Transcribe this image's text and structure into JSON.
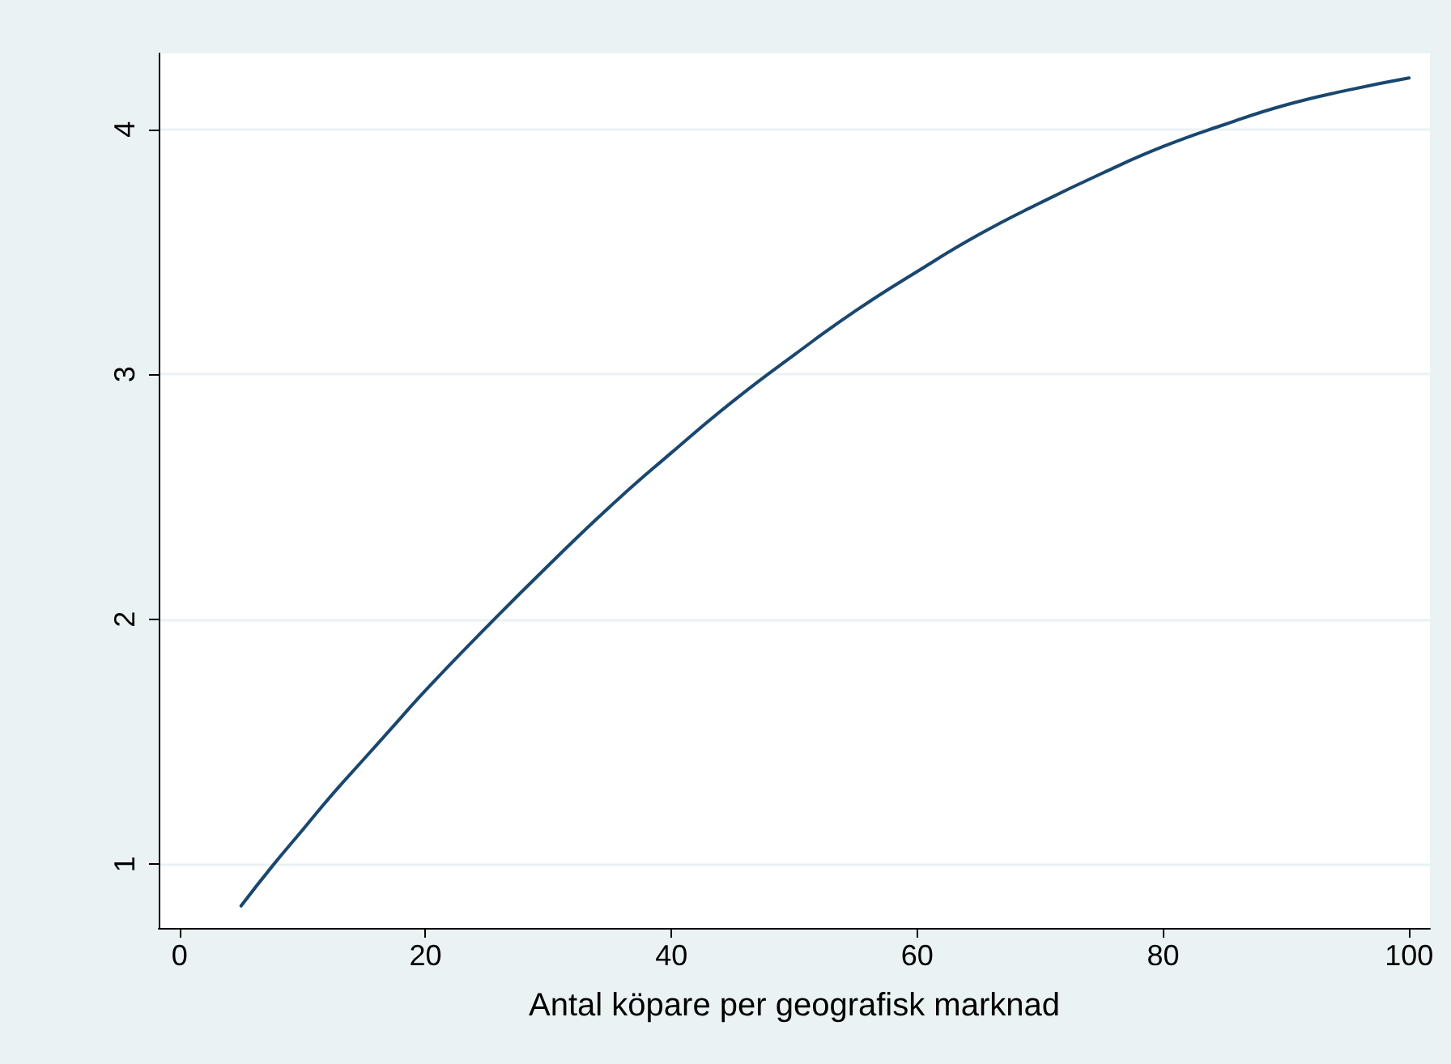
{
  "chart_data": {
    "type": "line",
    "xlabel": "Antal köpare per geografisk marknad",
    "x": [
      5,
      7.5,
      10,
      12.5,
      15,
      17.5,
      20,
      25,
      30,
      35,
      40,
      45,
      50,
      55,
      60,
      65,
      70,
      75,
      80,
      85,
      90,
      95,
      100
    ],
    "series": [
      {
        "color": "#1a476f",
        "values": [
          0.83,
          0.99,
          1.14,
          1.29,
          1.43,
          1.57,
          1.71,
          1.97,
          2.22,
          2.46,
          2.68,
          2.89,
          3.08,
          3.26,
          3.42,
          3.57,
          3.7,
          3.82,
          3.93,
          4.02,
          4.1,
          4.16,
          4.21
        ]
      }
    ],
    "xlim": [
      -1.7,
      101.7
    ],
    "ylim": [
      0.74,
      4.31
    ],
    "xticks": [
      0,
      20,
      40,
      60,
      80,
      100
    ],
    "yticks": [
      1,
      2,
      3,
      4
    ],
    "grid": "y",
    "marker": "none",
    "line_style": "solid"
  }
}
